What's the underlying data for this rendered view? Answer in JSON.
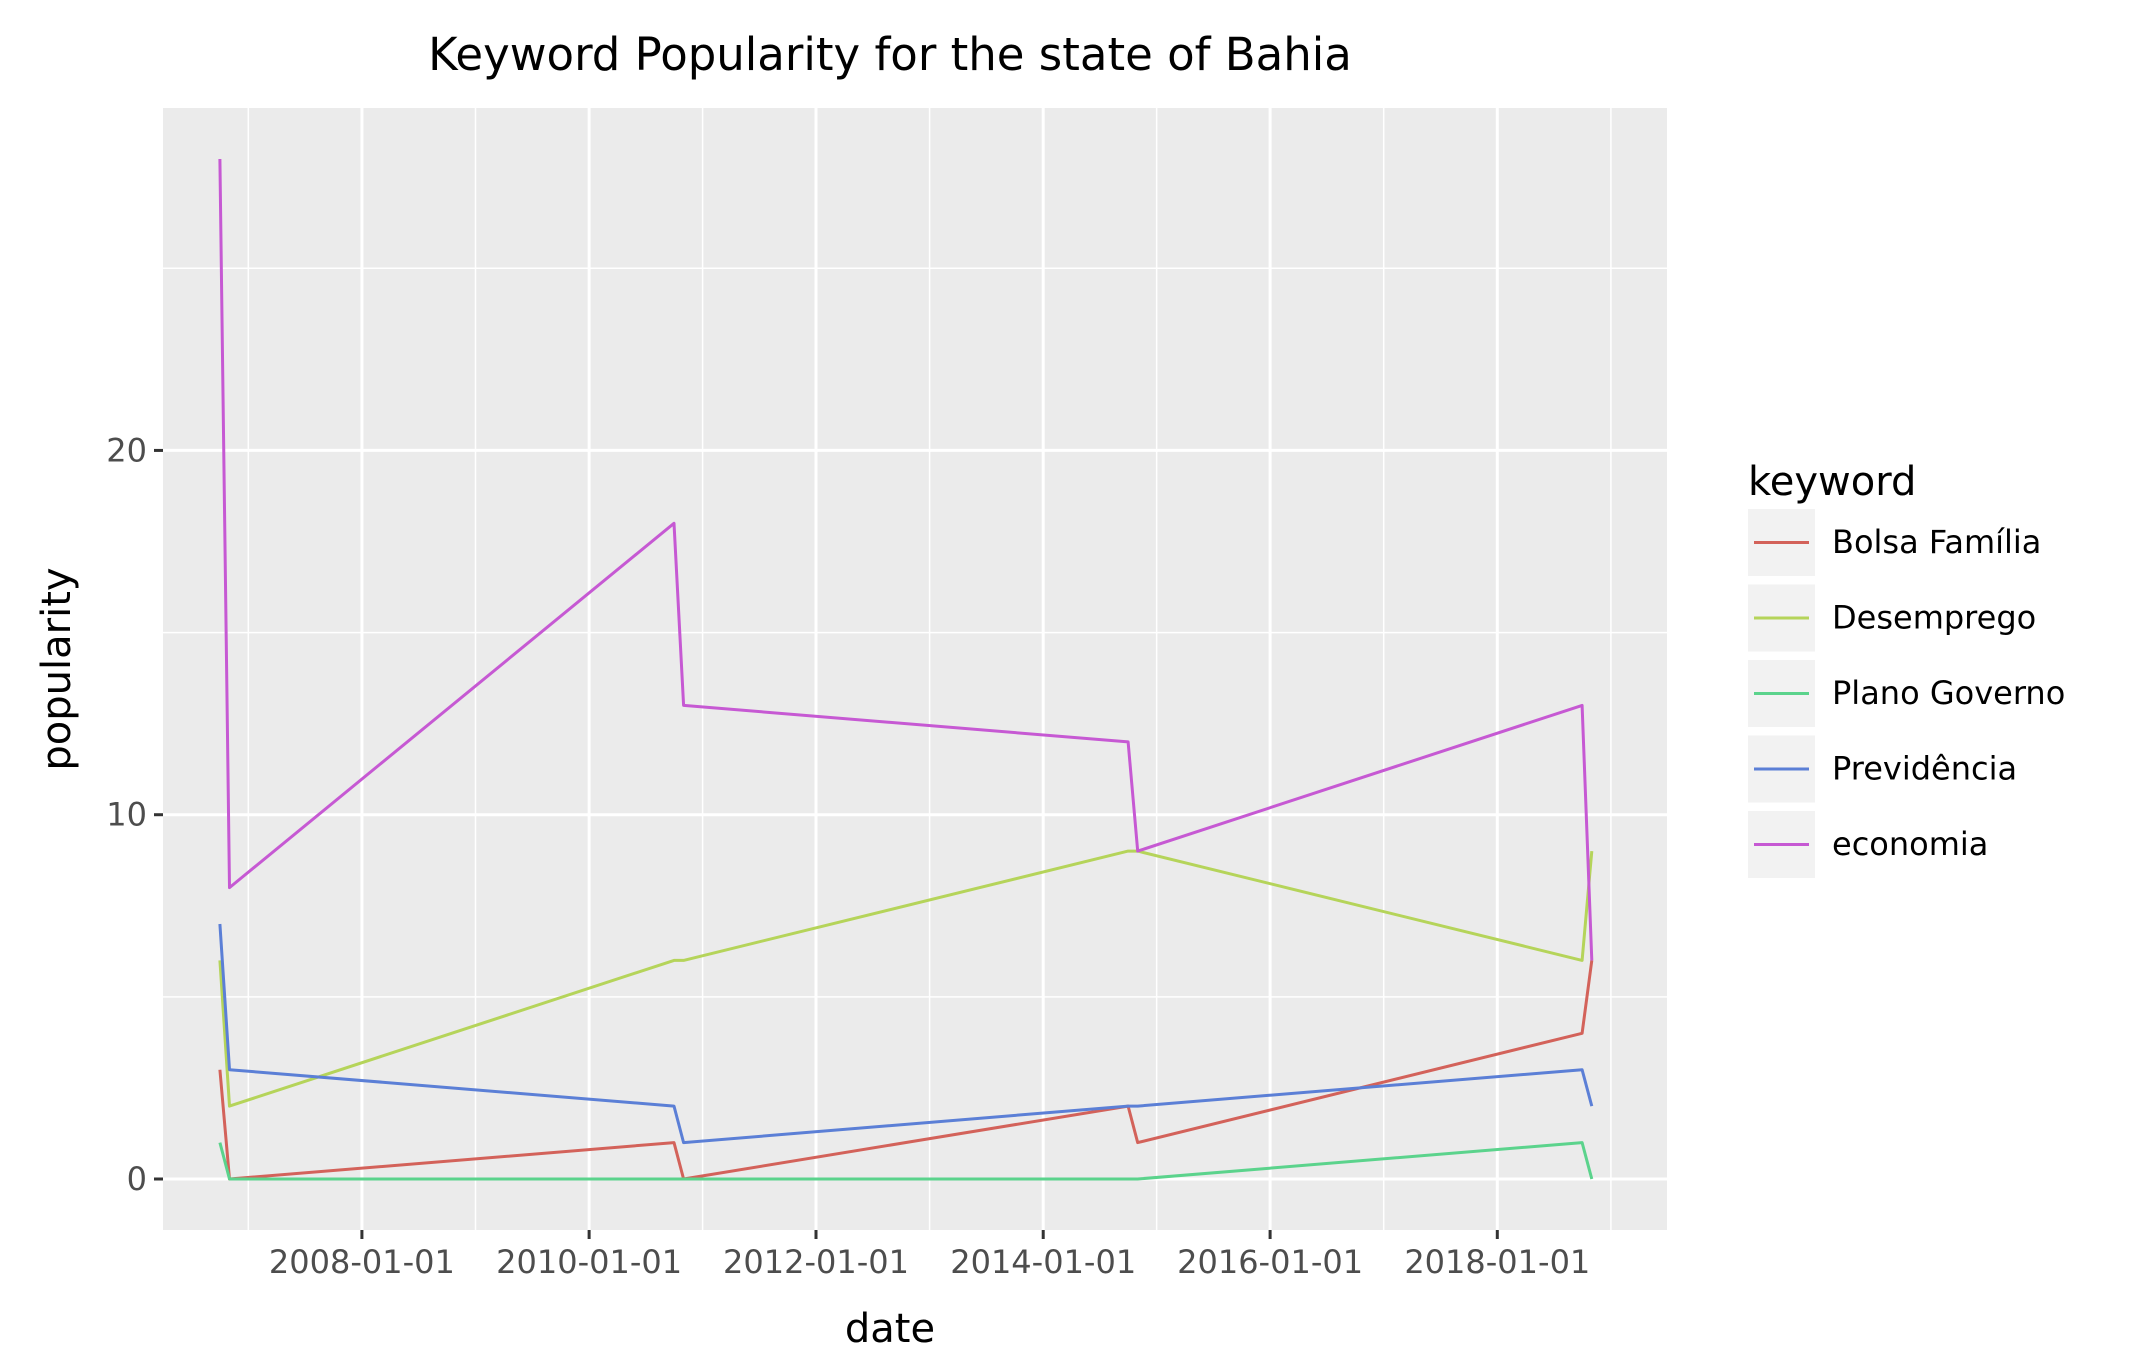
{
  "chart_data": {
    "type": "line",
    "title": "Keyword Popularity for the state of Bahia",
    "xlabel": "date",
    "ylabel": "popularity",
    "x_ticks": [
      "2008-01-01",
      "2010-01-01",
      "2012-01-01",
      "2014-01-01",
      "2016-01-01",
      "2018-01-01"
    ],
    "y_ticks": [
      0,
      10,
      20
    ],
    "xlim": [
      "2006-04-01",
      "2019-07-01"
    ],
    "ylim": [
      -1.4,
      29.4
    ],
    "grid": true,
    "legend_title": "keyword",
    "legend_position": "right",
    "x": [
      "2006-10-01",
      "2006-11-01",
      "2010-10-01",
      "2010-11-01",
      "2014-10-01",
      "2014-11-01",
      "2018-10-01",
      "2018-11-01"
    ],
    "series": [
      {
        "name": "Bolsa Família",
        "color": "#d3625a",
        "values": [
          3,
          0,
          1,
          0,
          2,
          1,
          4,
          6
        ]
      },
      {
        "name": "Desemprego",
        "color": "#b5d45a",
        "values": [
          6,
          2,
          6,
          6,
          9,
          9,
          6,
          9
        ]
      },
      {
        "name": "Plano Governo",
        "color": "#5bd38c",
        "values": [
          1,
          0,
          0,
          0,
          0,
          0,
          1,
          0
        ]
      },
      {
        "name": "Previdência",
        "color": "#5b7fd6",
        "values": [
          7,
          3,
          2,
          1,
          2,
          2,
          3,
          2
        ]
      },
      {
        "name": "economia",
        "color": "#c659d3",
        "values": [
          28,
          8,
          18,
          13,
          12,
          9,
          13,
          6
        ]
      }
    ]
  }
}
